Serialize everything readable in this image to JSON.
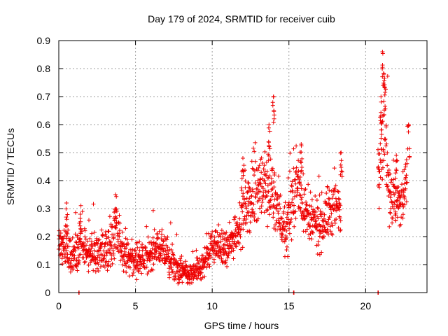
{
  "chart_data": {
    "type": "scatter",
    "title": "Day 179 of 2024, SRMTID for receiver cuib",
    "xlabel": "GPS time / hours",
    "ylabel": "SRMTID / TECUs",
    "xlim": [
      0,
      24
    ],
    "ylim": [
      0,
      0.9
    ],
    "x_ticks": [
      0,
      5,
      10,
      15,
      20
    ],
    "x_tick_labels": [
      "0",
      "5",
      "10",
      "15",
      "20"
    ],
    "y_ticks": [
      0,
      0.1,
      0.2,
      0.3,
      0.4,
      0.5,
      0.6,
      0.7,
      0.8,
      0.9
    ],
    "y_tick_labels": [
      "0",
      "0.1",
      "0.2",
      "0.3",
      "0.4",
      "0.5",
      "0.6",
      "0.7",
      "0.8",
      "0.9"
    ],
    "grid": true,
    "marker": "+",
    "color": "#ee0000",
    "series": [
      {
        "name": "SRMTID",
        "profile": [
          {
            "x": 0.0,
            "y": 0.18,
            "spread": 0.05
          },
          {
            "x": 0.5,
            "y": 0.14,
            "spread": 0.06
          },
          {
            "x": 1.0,
            "y": 0.13,
            "spread": 0.05
          },
          {
            "x": 1.5,
            "y": 0.16,
            "spread": 0.06
          },
          {
            "x": 2.0,
            "y": 0.14,
            "spread": 0.05
          },
          {
            "x": 3.0,
            "y": 0.15,
            "spread": 0.05
          },
          {
            "x": 3.8,
            "y": 0.2,
            "spread": 0.07
          },
          {
            "x": 4.5,
            "y": 0.12,
            "spread": 0.04
          },
          {
            "x": 5.5,
            "y": 0.11,
            "spread": 0.04
          },
          {
            "x": 6.5,
            "y": 0.17,
            "spread": 0.05
          },
          {
            "x": 7.5,
            "y": 0.09,
            "spread": 0.04
          },
          {
            "x": 8.5,
            "y": 0.06,
            "spread": 0.03
          },
          {
            "x": 9.3,
            "y": 0.09,
            "spread": 0.04
          },
          {
            "x": 10.0,
            "y": 0.17,
            "spread": 0.04
          },
          {
            "x": 11.0,
            "y": 0.15,
            "spread": 0.05
          },
          {
            "x": 12.0,
            "y": 0.28,
            "spread": 0.07
          },
          {
            "x": 13.0,
            "y": 0.38,
            "spread": 0.09
          },
          {
            "x": 14.0,
            "y": 0.36,
            "spread": 0.1
          },
          {
            "x": 14.8,
            "y": 0.2,
            "spread": 0.06
          },
          {
            "x": 15.5,
            "y": 0.4,
            "spread": 0.09
          },
          {
            "x": 16.3,
            "y": 0.25,
            "spread": 0.07
          },
          {
            "x": 17.0,
            "y": 0.24,
            "spread": 0.07
          },
          {
            "x": 17.8,
            "y": 0.3,
            "spread": 0.08
          },
          {
            "x": 18.4,
            "y": 0.3,
            "spread": 0.08
          }
        ],
        "profile_2": [
          {
            "x": 20.8,
            "y": 0.45,
            "spread": 0.1
          },
          {
            "x": 21.2,
            "y": 0.6,
            "spread": 0.12
          },
          {
            "x": 21.6,
            "y": 0.35,
            "spread": 0.09
          },
          {
            "x": 22.2,
            "y": 0.3,
            "spread": 0.08
          },
          {
            "x": 22.7,
            "y": 0.4,
            "spread": 0.09
          }
        ],
        "peaks": [
          {
            "x": 0.5,
            "y": 0.32
          },
          {
            "x": 1.4,
            "y": 0.28
          },
          {
            "x": 3.7,
            "y": 0.35
          },
          {
            "x": 12.0,
            "y": 0.48
          },
          {
            "x": 13.7,
            "y": 0.6
          },
          {
            "x": 14.0,
            "y": 0.7
          },
          {
            "x": 15.8,
            "y": 0.53
          },
          {
            "x": 18.4,
            "y": 0.5
          },
          {
            "x": 21.1,
            "y": 0.86
          },
          {
            "x": 21.2,
            "y": 0.78
          },
          {
            "x": 21.0,
            "y": 0.7
          },
          {
            "x": 22.8,
            "y": 0.6
          },
          {
            "x": 22.0,
            "y": 0.49
          }
        ],
        "zero_points": [
          {
            "x": 1.3,
            "y": 0.0
          },
          {
            "x": 15.3,
            "y": 0.0
          },
          {
            "x": 20.8,
            "y": 0.0
          }
        ]
      }
    ]
  }
}
